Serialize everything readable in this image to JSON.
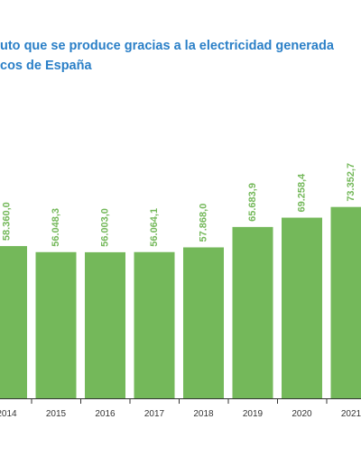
{
  "chart_data": {
    "type": "bar",
    "title_line_1": "uto que se produce gracias a la electricidad generada",
    "title_line_2": "cos de España",
    "categories": [
      "2014",
      "2015",
      "2016",
      "2017",
      "2018",
      "2019",
      "2020",
      "2021"
    ],
    "values": [
      58360.0,
      56048.3,
      56003.0,
      56064.1,
      57868.0,
      65683.9,
      69258.4,
      73352.7
    ],
    "value_labels": [
      "58.360,0",
      "56.048,3",
      "56.003,0",
      "56.064,1",
      "57.868,0",
      "65.683,9",
      "69.258,4",
      "73.352,7"
    ],
    "xlabel": "",
    "ylabel": "",
    "grid": false,
    "colors": {
      "bar": "#74b85a",
      "label": "#74b85a",
      "title": "#2a7fc7",
      "axis": "#333333",
      "tick": "#333333"
    }
  }
}
